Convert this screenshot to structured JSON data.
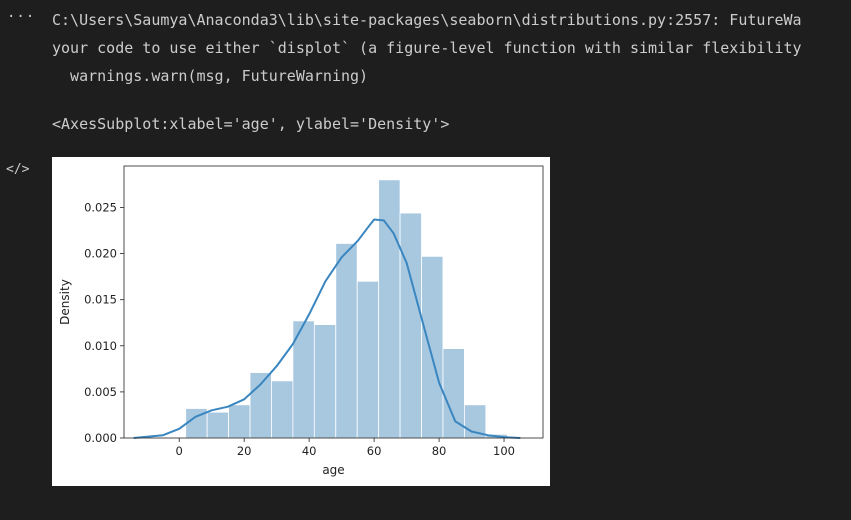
{
  "output": {
    "warning_line1": "C:\\Users\\Saumya\\Anaconda3\\lib\\site-packages\\seaborn\\distributions.py:2557: FutureWa",
    "warning_line2": "your code to use either `displot` (a figure-level function with similar flexibility",
    "warning_line3": "  warnings.warn(msg, FutureWarning)",
    "repr": "<AxesSubplot:xlabel='age', ylabel='Density'>"
  },
  "icons": {
    "more": "more-icon",
    "code": "code-icon"
  },
  "colors": {
    "bar": "#a8c8e0",
    "kde": "#3a86c0"
  },
  "chart_data": {
    "type": "bar",
    "xlabel": "age",
    "ylabel": "Density",
    "xlim": [
      -17,
      112
    ],
    "ylim": [
      0,
      0.0295
    ],
    "xticks": [
      0,
      20,
      40,
      60,
      80,
      100
    ],
    "yticks": [
      0.0,
      0.005,
      0.01,
      0.015,
      0.02,
      0.025
    ],
    "ytick_labels": [
      "0.000",
      "0.005",
      "0.010",
      "0.015",
      "0.020",
      "0.025"
    ],
    "bins": [
      {
        "x0": 2,
        "x1": 8.6,
        "density": 0.0032
      },
      {
        "x0": 8.6,
        "x1": 15.2,
        "density": 0.0028
      },
      {
        "x0": 15.2,
        "x1": 21.8,
        "density": 0.0036
      },
      {
        "x0": 21.8,
        "x1": 28.4,
        "density": 0.0071
      },
      {
        "x0": 28.4,
        "x1": 35.0,
        "density": 0.0062
      },
      {
        "x0": 35.0,
        "x1": 41.6,
        "density": 0.0127
      },
      {
        "x0": 41.6,
        "x1": 48.2,
        "density": 0.0123
      },
      {
        "x0": 48.2,
        "x1": 54.8,
        "density": 0.0211
      },
      {
        "x0": 54.8,
        "x1": 61.4,
        "density": 0.017
      },
      {
        "x0": 61.4,
        "x1": 68.0,
        "density": 0.028
      },
      {
        "x0": 68.0,
        "x1": 74.6,
        "density": 0.0244
      },
      {
        "x0": 74.6,
        "x1": 81.2,
        "density": 0.0197
      },
      {
        "x0": 81.2,
        "x1": 87.8,
        "density": 0.0097
      },
      {
        "x0": 87.8,
        "x1": 94.4,
        "density": 0.0036
      },
      {
        "x0": 94.4,
        "x1": 101.0,
        "density": 0.0004
      }
    ],
    "kde": {
      "x": [
        -14,
        -5,
        0,
        5,
        10,
        15,
        20,
        25,
        30,
        35,
        40,
        45,
        50,
        55,
        58,
        60,
        63,
        66,
        70,
        75,
        80,
        85,
        90,
        95,
        100,
        105
      ],
      "y": [
        0.0,
        0.0003,
        0.001,
        0.0023,
        0.003,
        0.0034,
        0.0042,
        0.0058,
        0.0078,
        0.0102,
        0.0134,
        0.017,
        0.0196,
        0.0214,
        0.0228,
        0.0237,
        0.0236,
        0.0222,
        0.019,
        0.0125,
        0.006,
        0.0018,
        0.0007,
        0.0003,
        0.0001,
        0.0
      ]
    }
  }
}
